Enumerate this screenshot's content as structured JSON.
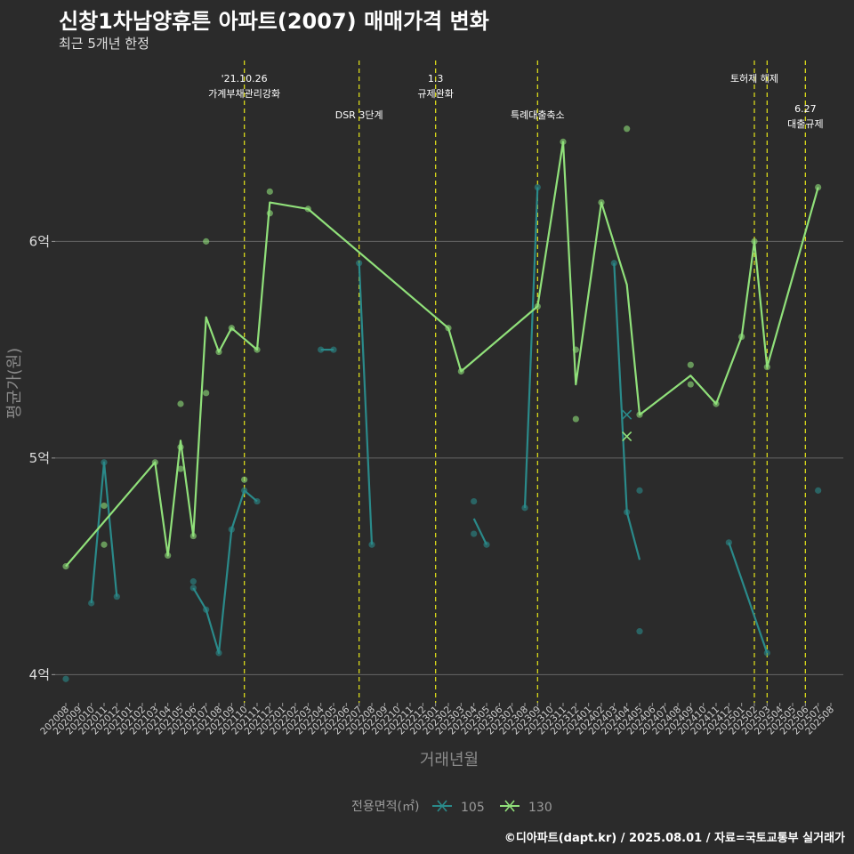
{
  "header": {
    "title": "신창1차남양휴튼 아파트(2007) 매매가격 변화",
    "subtitle": "최근 5개년 한정"
  },
  "footer": {
    "caption": "©디아파트(dapt.kr) / 2025.08.01 / 자료=국토교통부 실거래가"
  },
  "colors": {
    "background": "#2b2b2b",
    "series_105": "#2a8a8a",
    "series_130": "#90e07a",
    "event_line": "#d8d81a",
    "grid": "#666666"
  },
  "chart_data": {
    "type": "line",
    "xlabel": "거래년월",
    "ylabel": "평균가(원)",
    "ylim": [
      3.87,
      6.86
    ],
    "y_ticks": [
      {
        "value": 4,
        "label": "4억"
      },
      {
        "value": 5,
        "label": "5억"
      },
      {
        "value": 6,
        "label": "6억"
      }
    ],
    "x_categories": [
      "202008",
      "202009",
      "202010",
      "202011",
      "202012",
      "202101",
      "202102",
      "202103",
      "202104",
      "202105",
      "202106",
      "202107",
      "202108",
      "202109",
      "202110",
      "202111",
      "202112",
      "202201",
      "202202",
      "202203",
      "202204",
      "202205",
      "202206",
      "202207",
      "202208",
      "202209",
      "202210",
      "202211",
      "202212",
      "202301",
      "202302",
      "202303",
      "202304",
      "202305",
      "202306",
      "202307",
      "202308",
      "202309",
      "202310",
      "202311",
      "202312",
      "202401",
      "202402",
      "202403",
      "202404",
      "202405",
      "202406",
      "202407",
      "202408",
      "202409",
      "202410",
      "202411",
      "202412",
      "202501",
      "202502",
      "202503",
      "202504",
      "202505",
      "202506",
      "202507",
      "202508"
    ],
    "legend": {
      "title": "전용면적(㎡)",
      "position": "bottom"
    },
    "series": [
      {
        "name": "105",
        "color": "#2a8a8a",
        "segments": [
          [
            [
              "202010",
              4.33
            ],
            [
              "202011",
              4.98
            ],
            [
              "202012",
              4.36
            ]
          ],
          [
            [
              "202106",
              4.4
            ],
            [
              "202107",
              4.3
            ],
            [
              "202108",
              4.1
            ],
            [
              "202109",
              4.67
            ],
            [
              "202110",
              4.85
            ],
            [
              "202111",
              4.8
            ]
          ],
          [
            [
              "202204",
              5.5
            ],
            [
              "202205",
              5.5
            ]
          ],
          [
            [
              "202207",
              5.9
            ],
            [
              "202208",
              4.6
            ]
          ],
          [
            [
              "202304",
              4.72
            ],
            [
              "202305",
              4.6
            ]
          ],
          [
            [
              "202308",
              4.77
            ],
            [
              "202309",
              6.25
            ]
          ],
          [
            [
              "202403",
              5.9
            ],
            [
              "202404",
              4.75
            ],
            [
              "202405",
              4.53
            ]
          ],
          [
            [
              "202412",
              4.61
            ],
            [
              "202503",
              4.1
            ]
          ]
        ],
        "points": [
          [
            "202008",
            3.98
          ],
          [
            "202010",
            4.33
          ],
          [
            "202011",
            4.98
          ],
          [
            "202012",
            4.36
          ],
          [
            "202106",
            4.43
          ],
          [
            "202106",
            4.4
          ],
          [
            "202107",
            4.3
          ],
          [
            "202108",
            4.1
          ],
          [
            "202109",
            4.67
          ],
          [
            "202110",
            4.85
          ],
          [
            "202111",
            4.8
          ],
          [
            "202204",
            5.5
          ],
          [
            "202205",
            5.5
          ],
          [
            "202207",
            5.9
          ],
          [
            "202208",
            4.6
          ],
          [
            "202304",
            4.8
          ],
          [
            "202304",
            4.65
          ],
          [
            "202305",
            4.6
          ],
          [
            "202308",
            4.77
          ],
          [
            "202309",
            6.25
          ],
          [
            "202403",
            5.9
          ],
          [
            "202404",
            4.75
          ],
          [
            "202405",
            4.85
          ],
          [
            "202405",
            4.2
          ],
          [
            "202412",
            4.61
          ],
          [
            "202503",
            4.1
          ],
          [
            "202507",
            4.85
          ]
        ],
        "cancelled": [
          [
            "202404",
            5.2
          ]
        ]
      },
      {
        "name": "130",
        "color": "#90e07a",
        "segments": [
          [
            [
              "202008",
              4.5
            ],
            [
              "202103",
              4.98
            ],
            [
              "202104",
              4.55
            ],
            [
              "202105",
              5.08
            ],
            [
              "202106",
              4.64
            ],
            [
              "202107",
              5.65
            ],
            [
              "202108",
              5.49
            ],
            [
              "202109",
              5.6
            ],
            [
              "202111",
              5.5
            ],
            [
              "202112",
              6.18
            ],
            [
              "202203",
              6.15
            ],
            [
              "202302",
              5.6
            ],
            [
              "202303",
              5.4
            ],
            [
              "202309",
              5.7
            ],
            [
              "202311",
              6.46
            ],
            [
              "202312",
              5.34
            ],
            [
              "202402",
              6.18
            ],
            [
              "202404",
              5.8
            ],
            [
              "202405",
              5.2
            ],
            [
              "202409",
              5.38
            ],
            [
              "202411",
              5.25
            ],
            [
              "202501",
              5.56
            ],
            [
              "202502",
              6.0
            ],
            [
              "202503",
              5.42
            ],
            [
              "202507",
              6.25
            ]
          ]
        ],
        "points": [
          [
            "202008",
            4.5
          ],
          [
            "202011",
            4.78
          ],
          [
            "202011",
            4.6
          ],
          [
            "202103",
            4.98
          ],
          [
            "202104",
            4.55
          ],
          [
            "202105",
            5.25
          ],
          [
            "202105",
            5.05
          ],
          [
            "202105",
            4.95
          ],
          [
            "202106",
            4.64
          ],
          [
            "202107",
            6.0
          ],
          [
            "202107",
            5.3
          ],
          [
            "202108",
            5.49
          ],
          [
            "202109",
            5.6
          ],
          [
            "202110",
            4.9
          ],
          [
            "202111",
            5.5
          ],
          [
            "202112",
            6.23
          ],
          [
            "202112",
            6.13
          ],
          [
            "202203",
            6.15
          ],
          [
            "202302",
            5.6
          ],
          [
            "202303",
            5.4
          ],
          [
            "202309",
            5.7
          ],
          [
            "202311",
            6.46
          ],
          [
            "202312",
            5.5
          ],
          [
            "202312",
            5.18
          ],
          [
            "202402",
            6.18
          ],
          [
            "202404",
            6.52
          ],
          [
            "202405",
            5.2
          ],
          [
            "202409",
            5.43
          ],
          [
            "202409",
            5.34
          ],
          [
            "202411",
            5.25
          ],
          [
            "202501",
            5.56
          ],
          [
            "202502",
            6.0
          ],
          [
            "202503",
            5.42
          ],
          [
            "202507",
            6.25
          ]
        ],
        "cancelled": [
          [
            "202404",
            5.1
          ]
        ]
      }
    ],
    "events": [
      {
        "month": "202110",
        "label_lines": [
          "'21.10.26",
          "가계부채관리강화"
        ],
        "label_row": 0
      },
      {
        "month": "202207",
        "label_lines": [
          "DSR 3단계"
        ],
        "label_row": 1
      },
      {
        "month": "202301",
        "label_lines": [
          "1.3",
          "규제완화"
        ],
        "label_row": 0
      },
      {
        "month": "202309",
        "label_lines": [
          "특례대출축소"
        ],
        "label_row": 1
      },
      {
        "month": "202502",
        "label_lines": [
          "토허제 해제"
        ],
        "label_row": 0
      },
      {
        "month": "202503",
        "label_lines": [],
        "label_row": 0
      },
      {
        "month": "202506",
        "label_lines": [
          "6.27",
          "대출규제"
        ],
        "label_row": 2
      }
    ]
  }
}
